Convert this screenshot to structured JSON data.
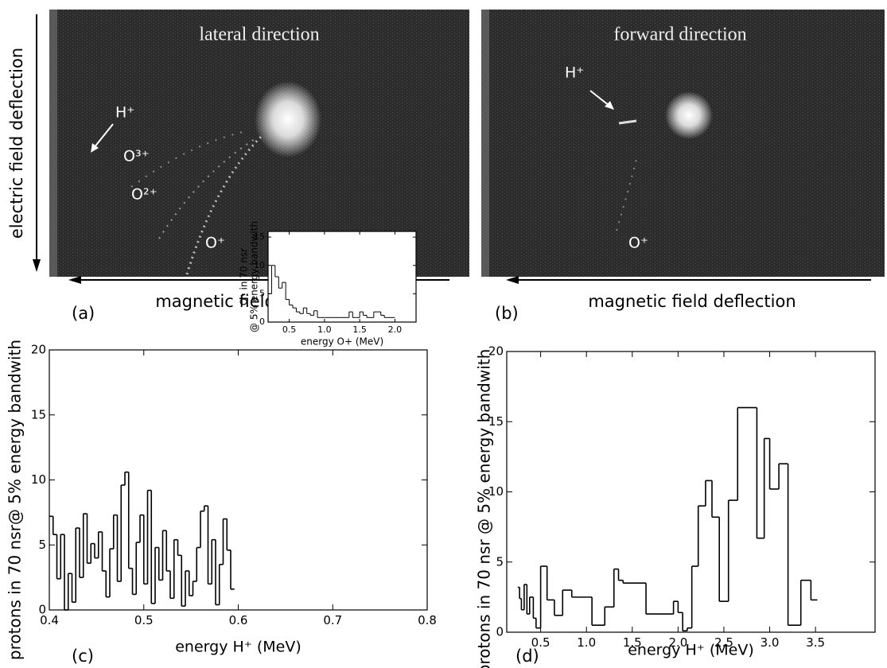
{
  "images": [
    {
      "title": "lateral direction",
      "panel": "(a)",
      "y_label": "electric field deflection",
      "x_label": "magnetic field deflection",
      "labels": [
        "H⁺",
        "O³⁺",
        "O²⁺",
        "O⁺"
      ]
    },
    {
      "title": "forward direction",
      "panel": "(b)",
      "x_label": "magnetic field deflection",
      "labels": [
        "H⁺",
        "O⁺"
      ]
    }
  ],
  "chart_data": [
    {
      "type": "histogram",
      "panel": "(c)",
      "x_label": "energy H⁺ (MeV)",
      "y_label": "protons in 70 nsr@ 5% energy bandwith",
      "xlim": [
        0.4,
        0.8
      ],
      "ylim": [
        0,
        20
      ],
      "xticks": [
        0.4,
        0.5,
        0.6,
        0.7,
        0.8
      ],
      "yticks": [
        0,
        5,
        10,
        15,
        20
      ],
      "color": "#000000",
      "bins": [
        0.4,
        0.404,
        0.408,
        0.412,
        0.416,
        0.42,
        0.424,
        0.428,
        0.432,
        0.436,
        0.44,
        0.444,
        0.448,
        0.452,
        0.456,
        0.46,
        0.464,
        0.468,
        0.472,
        0.476,
        0.48,
        0.484,
        0.488,
        0.492,
        0.496,
        0.5,
        0.504,
        0.508,
        0.512,
        0.516,
        0.52,
        0.524,
        0.528,
        0.532,
        0.536,
        0.54,
        0.544,
        0.548,
        0.552,
        0.556,
        0.56,
        0.564,
        0.568,
        0.572,
        0.576,
        0.58,
        0.584,
        0.588,
        0.592,
        0.596
      ],
      "values": [
        7.2,
        5.8,
        2.4,
        5.8,
        0,
        2.8,
        0.6,
        6.3,
        2.5,
        7.4,
        3.6,
        5.1,
        4.0,
        6.0,
        3.0,
        1.0,
        4.7,
        7.3,
        2.2,
        9.6,
        10.6,
        3.2,
        1.2,
        5.2,
        7.3,
        2.0,
        9.2,
        0.5,
        4.8,
        2.3,
        6.1,
        3.0,
        0.9,
        5.4,
        4.2,
        0.3,
        3.0,
        1.1,
        2.2,
        4.8,
        7.6,
        8.0,
        2.0,
        5.4,
        0.4,
        3.5,
        7.0,
        4.6,
        1.6
      ]
    },
    {
      "type": "histogram",
      "x_label": "energy O+ (MeV)",
      "y_label": [
        "O⁺ in 70 nsr",
        "@ 5% energy bandwith"
      ],
      "xlim": [
        0.2,
        2.3
      ],
      "ylim": [
        0,
        16
      ],
      "xticks": [
        0.5,
        {
          "value": 1,
          "label": "1.0"
        },
        1.5,
        {
          "value": 2,
          "label": "2.0"
        }
      ],
      "yticks": [
        0,
        5,
        10,
        15
      ],
      "color": "#000000",
      "bins": [
        0.2,
        0.25,
        0.3,
        0.35,
        0.4,
        0.45,
        0.5,
        0.55,
        0.6,
        0.65,
        0.7,
        0.75,
        0.8,
        0.85,
        0.9,
        0.95,
        1.0,
        1.05,
        1.1,
        1.15,
        1.2,
        1.25,
        1.3,
        1.35,
        1.4,
        1.45,
        1.5,
        1.55,
        1.6,
        1.65,
        1.7,
        1.75,
        1.8,
        1.85,
        1.9,
        1.95,
        2.0
      ],
      "values": [
        5,
        10,
        8,
        6,
        7,
        4,
        3,
        2.5,
        1.8,
        1.5,
        2.5,
        1.5,
        1.2,
        2,
        0.8,
        0.8,
        0.8,
        0.8,
        0.8,
        0.8,
        0.8,
        0.8,
        0.8,
        1.8,
        0.8,
        0.8,
        1.8,
        1.2,
        0.8,
        0.8,
        1.8,
        1.8,
        1.2,
        0.8,
        0.8,
        0.8
      ]
    },
    {
      "type": "histogram",
      "panel": "(d)",
      "x_label": "energy H⁺ (MeV)",
      "y_label": "protons in 70 nsr @ 5% energy bandwith",
      "xlim": [
        0.13,
        4.15
      ],
      "ylim": [
        0,
        20
      ],
      "xticks": [
        0.5,
        {
          "value": 1,
          "label": "1.0"
        },
        1.5,
        {
          "value": 2,
          "label": "2.0"
        },
        2.5,
        {
          "value": 3,
          "label": "3.0"
        },
        3.5
      ],
      "yticks": [
        0,
        5,
        10,
        15,
        20
      ],
      "color": "#000000",
      "bins": [
        0.25,
        0.27,
        0.29,
        0.32,
        0.35,
        0.38,
        0.42,
        0.45,
        0.5,
        0.57,
        0.65,
        0.74,
        0.84,
        1.06,
        1.2,
        1.3,
        1.35,
        1.4,
        1.65,
        1.95,
        2.0,
        2.05,
        2.1,
        2.15,
        2.22,
        2.3,
        2.37,
        2.45,
        2.55,
        2.65,
        2.86,
        2.94,
        3.0,
        3.1,
        3.2,
        3.34,
        3.45,
        3.52
      ],
      "values": [
        3.2,
        2.4,
        1.6,
        3.4,
        1.3,
        2.5,
        1.0,
        0.3,
        4.7,
        2.3,
        1.2,
        3.0,
        2.5,
        0.5,
        1.8,
        4.5,
        3.7,
        3.5,
        1.3,
        2.2,
        1.4,
        0.1,
        0.3,
        4.7,
        9.0,
        10.8,
        8.2,
        2.2,
        9.4,
        16.0,
        6.7,
        13.8,
        10.2,
        12.0,
        0.5,
        3.7,
        2.3
      ]
    }
  ]
}
